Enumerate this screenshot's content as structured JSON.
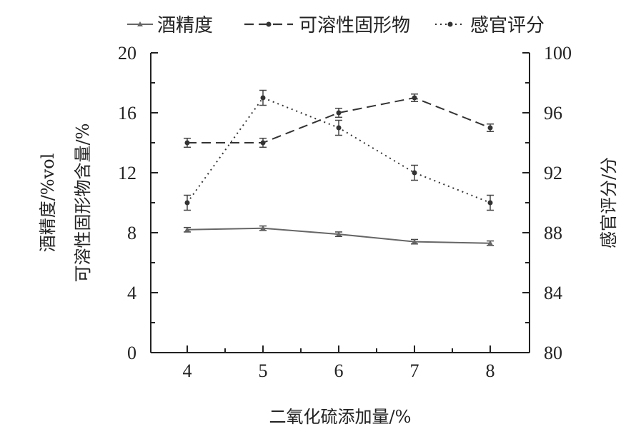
{
  "chart_data": {
    "type": "line",
    "title": "",
    "xlabel": "二氧化硫添加量/%",
    "ylabel_left": [
      "酒精度/%vol",
      "可溶性固形物含量/%"
    ],
    "ylabel_right": "感官评分/分",
    "categories": [
      "4",
      "5",
      "6",
      "7",
      "8"
    ],
    "x": [
      4,
      5,
      6,
      7,
      8
    ],
    "y_left_lim": [
      0,
      20
    ],
    "y_left_ticks": [
      "0",
      "4",
      "8",
      "12",
      "16",
      "20"
    ],
    "y_right_lim": [
      80,
      100
    ],
    "y_right_ticks": [
      "80",
      "84",
      "88",
      "92",
      "96",
      "100"
    ],
    "grid": false,
    "legend_position": "top",
    "series": [
      {
        "name": "酒精度",
        "axis": "left",
        "style": "solid",
        "color": "#666666",
        "values": [
          8.2,
          8.3,
          7.9,
          7.4,
          7.3
        ],
        "errors": [
          0.15,
          0.15,
          0.15,
          0.15,
          0.15
        ]
      },
      {
        "name": "可溶性固形物",
        "axis": "left",
        "style": "dashed",
        "color": "#333333",
        "values": [
          14.0,
          14.0,
          16.0,
          17.0,
          15.0
        ],
        "errors": [
          0.3,
          0.3,
          0.3,
          0.25,
          0.25
        ]
      },
      {
        "name": "感官评分",
        "axis": "right",
        "style": "dotted",
        "color": "#333333",
        "values": [
          90.0,
          97.0,
          95.0,
          92.0,
          90.0
        ],
        "errors": [
          0.5,
          0.5,
          0.5,
          0.5,
          0.5
        ]
      }
    ]
  }
}
